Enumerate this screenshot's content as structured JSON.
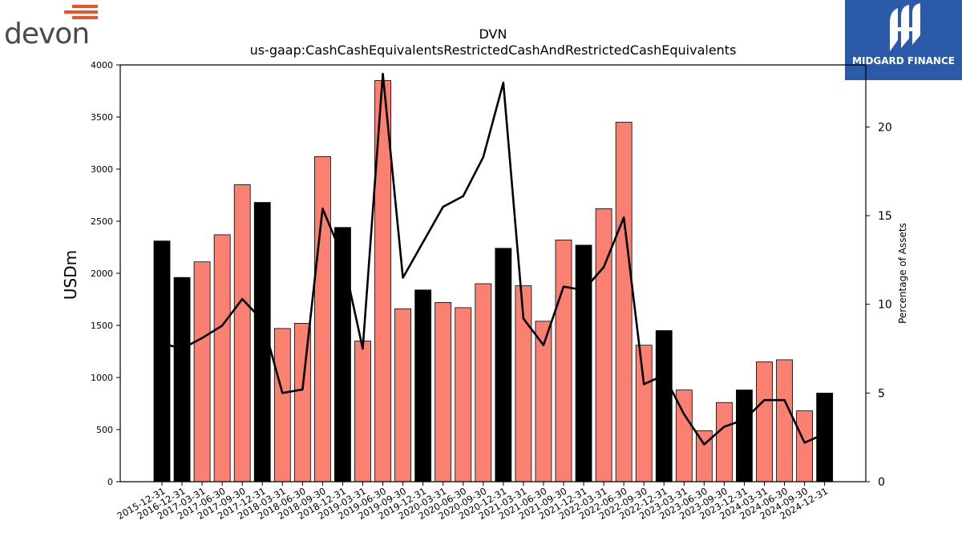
{
  "logos": {
    "left_text": "devon",
    "right_text": "MIDGARD FINANCE",
    "left_color": "#e8542a",
    "right_color": "#2b5aa8"
  },
  "chart_data": {
    "type": "bar",
    "title": "DVN",
    "subtitle": "us-gaap:CashCashEquivalentsRestrictedCashAndRestrictedCashEquivalents",
    "ylabel": "USDm",
    "y2label": "Percentage of Assets",
    "ylim": [
      0,
      4000
    ],
    "y2lim": [
      0,
      23.5
    ],
    "yticks": [
      0,
      500,
      1000,
      1500,
      2000,
      2500,
      3000,
      3500,
      4000
    ],
    "y2ticks": [
      0,
      5,
      10,
      15,
      20
    ],
    "grid": false,
    "categories": [
      "2015-12-31",
      "2016-12-31",
      "2017-03-31",
      "2017-06-30",
      "2017-09-30",
      "2017-12-31",
      "2018-03-31",
      "2018-06-30",
      "2018-09-30",
      "2018-12-31",
      "2019-03-31",
      "2019-06-30",
      "2019-09-30",
      "2019-12-31",
      "2020-03-31",
      "2020-06-30",
      "2020-09-30",
      "2020-12-31",
      "2021-03-31",
      "2021-06-30",
      "2021-09-30",
      "2021-12-31",
      "2022-03-31",
      "2022-06-30",
      "2022-09-30",
      "2022-12-31",
      "2023-03-31",
      "2023-06-30",
      "2023-09-30",
      "2023-12-31",
      "2024-03-31",
      "2024-06-30",
      "2024-09-30",
      "2024-12-31"
    ],
    "values": [
      2310,
      1960,
      2110,
      2370,
      2850,
      2680,
      1470,
      1520,
      3120,
      2440,
      1350,
      3850,
      1660,
      1840,
      1720,
      1670,
      1900,
      2240,
      1880,
      1540,
      2320,
      2270,
      2620,
      3450,
      1310,
      1450,
      880,
      490,
      760,
      880,
      1150,
      1170,
      680,
      850
    ],
    "year_end_flags": [
      true,
      true,
      false,
      false,
      false,
      true,
      false,
      false,
      false,
      true,
      false,
      false,
      false,
      true,
      false,
      false,
      false,
      true,
      false,
      false,
      false,
      true,
      false,
      false,
      false,
      true,
      false,
      false,
      false,
      true,
      false,
      false,
      false,
      true
    ],
    "line_series": {
      "name": "Percentage of Assets",
      "values": [
        7.8,
        7.5,
        8.1,
        8.8,
        10.3,
        9.1,
        5.0,
        5.2,
        15.4,
        12.7,
        7.5,
        23.0,
        11.5,
        13.5,
        15.5,
        16.1,
        18.3,
        22.5,
        9.2,
        7.7,
        11.0,
        10.8,
        12.1,
        14.9,
        5.5,
        6.0,
        3.8,
        2.1,
        3.1,
        3.5,
        4.6,
        4.6,
        2.2,
        2.7
      ]
    },
    "colors": {
      "year_end_bar": "#000000",
      "quarter_bar": "#fa8072",
      "bar_edge": "#000000",
      "line": "#000000"
    }
  }
}
